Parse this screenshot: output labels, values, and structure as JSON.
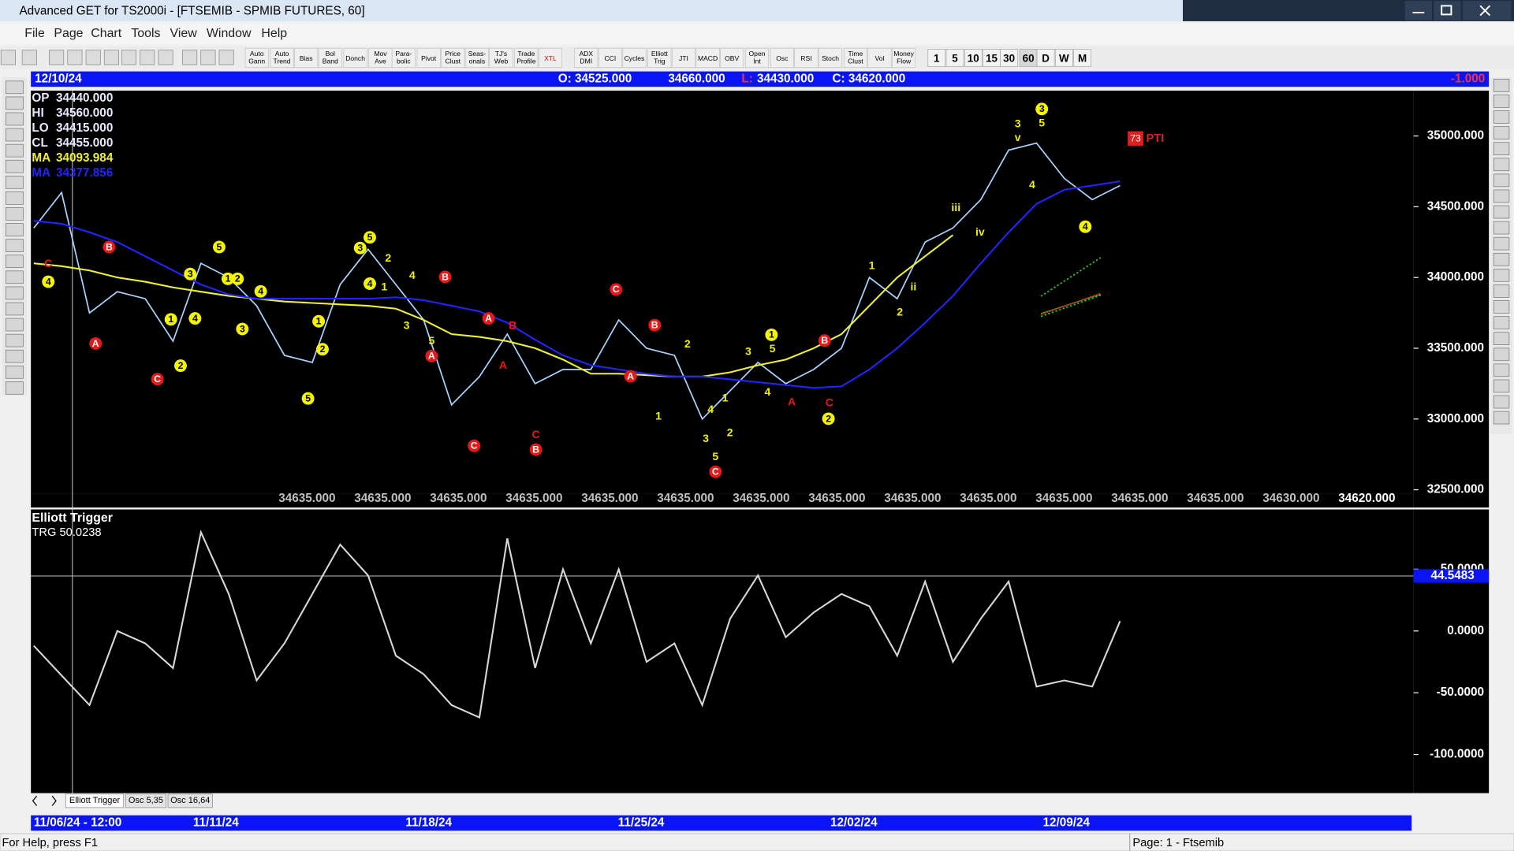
{
  "window": {
    "title": "Advanced GET for TS2000i - [FTSEMIB - SPMIB FUTURES, 60]",
    "menu": [
      "File",
      "Page",
      "Chart",
      "Tools",
      "View",
      "Window",
      "Help"
    ],
    "toolbar": [
      [
        "Auto",
        "Gann"
      ],
      [
        "Auto",
        "Trend"
      ],
      [
        "Bias"
      ],
      [
        "Bol",
        "Band"
      ],
      [
        "Donch"
      ],
      [
        "Mov",
        "Ave"
      ],
      [
        "Para-",
        "bolic"
      ],
      [
        "Pivot"
      ],
      [
        "Price",
        "Clust"
      ],
      [
        "Seas-",
        "onals"
      ],
      [
        "TJ's",
        "Web"
      ],
      [
        "Trade",
        "Profile"
      ],
      [
        "XTL"
      ],
      [
        "ADX",
        "DMI"
      ],
      [
        "CCI"
      ],
      [
        "Cycles"
      ],
      [
        "Elliott",
        "Trig"
      ],
      [
        "JTI"
      ],
      [
        "MACD"
      ],
      [
        "OBV"
      ],
      [
        "Open",
        "Int"
      ],
      [
        "Osc"
      ],
      [
        "RSI"
      ],
      [
        "Stoch"
      ],
      [
        "Time",
        "Clust"
      ],
      [
        "Vol"
      ],
      [
        "Money",
        "Flow"
      ]
    ],
    "periods": [
      "1",
      "5",
      "10",
      "15",
      "30",
      "60",
      "D",
      "W",
      "M"
    ]
  },
  "header": {
    "date": "12/10/24",
    "open": "O: 34525.000",
    "high": "34660.000",
    "low_label": "L:",
    "low": "34430.000",
    "close": "C: 34620.000",
    "change": "-1.000"
  },
  "info": [
    {
      "label": "OP",
      "value": "34440.000"
    },
    {
      "label": "HI",
      "value": "34560.000"
    },
    {
      "label": "LO",
      "value": "34415.000"
    },
    {
      "label": "CL",
      "value": "34455.000"
    },
    {
      "label": "MA",
      "value": "34093.984"
    },
    {
      "label": "MA",
      "value": "34377.856"
    }
  ],
  "chart_data": [
    {
      "type": "line",
      "series": [
        {
          "color": "#a8d4ff",
          "values": [
            34350,
            34600,
            33750,
            33900,
            33850,
            33550,
            34100,
            34000,
            33800,
            33450,
            33400,
            33950,
            34200,
            33950,
            33700,
            33100,
            33300,
            33600,
            33250,
            33350,
            33350,
            33700,
            33500,
            33450,
            33000,
            33200,
            33400,
            33250,
            33350,
            33500,
            34000,
            33850,
            34250,
            34350,
            34550,
            34900,
            34950,
            34700,
            34550,
            34650
          ]
        },
        {
          "color": "#f0f030",
          "values": [
            34100,
            34080,
            34050,
            34000,
            33970,
            33930,
            33900,
            33870,
            33850,
            33830,
            33820,
            33810,
            33800,
            33780,
            33700,
            33600,
            33580,
            33550,
            33500,
            33420,
            33320,
            33320,
            33310,
            33300,
            33300,
            33330,
            33380,
            33420,
            33500,
            33600,
            33800,
            34000,
            34150,
            34300,
            null,
            null,
            null,
            null,
            null,
            null
          ]
        },
        {
          "color": "#2323ff",
          "values": [
            34400,
            34380,
            34320,
            34250,
            34150,
            34050,
            33950,
            33880,
            33850,
            33850,
            33850,
            33850,
            33850,
            33860,
            33840,
            33800,
            33760,
            33680,
            33560,
            33450,
            33380,
            33350,
            33320,
            33300,
            33300,
            33280,
            33260,
            33240,
            33220,
            33230,
            33350,
            33500,
            33680,
            33870,
            34100,
            34320,
            34520,
            34620,
            34650,
            34680
          ]
        }
      ],
      "ylim": [
        32470,
        35320
      ],
      "yticks": [
        {
          "value": 32500,
          "label": "32500.000"
        },
        {
          "value": 33000,
          "label": "33000.000"
        },
        {
          "value": 33500,
          "label": "33500.000"
        },
        {
          "value": 34000,
          "label": "34000.000"
        },
        {
          "value": 34500,
          "label": "34500.000"
        },
        {
          "value": 35000,
          "label": "35000.000"
        }
      ],
      "value_row": [
        "34635.000",
        "34635.000",
        "34635.000",
        "34635.000",
        "34635.000",
        "34635.000",
        "34635.000",
        "34635.000",
        "34635.000",
        "34635.000",
        "34635.000",
        "34635.000",
        "34635.000",
        "34630.000",
        "34620.000"
      ],
      "pti": {
        "count": "73",
        "label": "PTI"
      },
      "annotations": [
        {
          "text": "B",
          "style": "red-circle"
        },
        {
          "text": "A",
          "style": "red-circle"
        },
        {
          "text": "C",
          "style": "red-circle"
        },
        {
          "text": "B",
          "style": "red-circle"
        },
        {
          "text": "A",
          "style": "red-circle"
        },
        {
          "text": "A",
          "style": "red-circle"
        },
        {
          "text": "C",
          "style": "red-circle"
        },
        {
          "text": "C",
          "style": "red-circle"
        },
        {
          "text": "B",
          "style": "red-circle"
        },
        {
          "text": "A",
          "style": "red-circle"
        },
        {
          "text": "B",
          "style": "red-circle"
        },
        {
          "text": "C",
          "style": "red-circle"
        },
        {
          "text": "B",
          "style": "red-circle"
        },
        {
          "text": "C",
          "style": "red"
        },
        {
          "text": "A",
          "style": "red"
        },
        {
          "text": "B",
          "style": "red"
        },
        {
          "text": "C",
          "style": "red"
        },
        {
          "text": "A",
          "style": "red"
        },
        {
          "text": "C",
          "style": "red"
        },
        {
          "text": "4",
          "style": "yellow-circle"
        },
        {
          "text": "5",
          "style": "yellow-circle"
        },
        {
          "text": "3",
          "style": "yellow-circle"
        },
        {
          "text": "1",
          "style": "yellow-circle"
        },
        {
          "text": "2",
          "style": "yellow-circle"
        },
        {
          "text": "4",
          "style": "yellow-circle"
        },
        {
          "text": "1",
          "style": "yellow-circle"
        },
        {
          "text": "2",
          "style": "yellow-circle"
        },
        {
          "text": "4",
          "style": "yellow-circle"
        },
        {
          "text": "3",
          "style": "yellow-circle"
        },
        {
          "text": "5",
          "style": "yellow-circle"
        },
        {
          "text": "3",
          "style": "yellow-circle"
        },
        {
          "text": "4",
          "style": "yellow-circle"
        },
        {
          "text": "1",
          "style": "yellow-circle"
        },
        {
          "text": "2",
          "style": "yellow-circle"
        },
        {
          "text": "5",
          "style": "yellow-circle"
        },
        {
          "text": "1",
          "style": "yellow-circle"
        },
        {
          "text": "2",
          "style": "yellow-circle"
        },
        {
          "text": "3",
          "style": "yellow-circle"
        },
        {
          "text": "4",
          "style": "yellow-circle"
        },
        {
          "text": "2",
          "style": "yellow"
        },
        {
          "text": "1",
          "style": "yellow"
        },
        {
          "text": "4",
          "style": "yellow"
        },
        {
          "text": "3",
          "style": "yellow"
        },
        {
          "text": "5",
          "style": "yellow"
        },
        {
          "text": "2",
          "style": "yellow"
        },
        {
          "text": "1",
          "style": "yellow"
        },
        {
          "text": "3",
          "style": "yellow"
        },
        {
          "text": "5",
          "style": "yellow"
        },
        {
          "text": "4",
          "style": "yellow"
        },
        {
          "text": "4",
          "style": "yellow"
        },
        {
          "text": "3",
          "style": "yellow"
        },
        {
          "text": "5",
          "style": "yellow"
        },
        {
          "text": "1",
          "style": "yellow"
        },
        {
          "text": "2",
          "style": "yellow"
        },
        {
          "text": "1",
          "style": "yellow"
        },
        {
          "text": "2",
          "style": "yellow"
        },
        {
          "text": "ii",
          "style": "yellow"
        },
        {
          "text": "iii",
          "style": "yellow"
        },
        {
          "text": "iv",
          "style": "yellow"
        },
        {
          "text": "3",
          "style": "yellow"
        },
        {
          "text": "v",
          "style": "yellow"
        },
        {
          "text": "5",
          "style": "yellow"
        },
        {
          "text": "4",
          "style": "yellow"
        }
      ]
    },
    {
      "type": "line",
      "title": "Elliott Trigger",
      "subtitle": "TRG 50.0238",
      "series": [
        {
          "color": "#d8d8d8",
          "values": [
            -12,
            -36,
            -60,
            0,
            -10,
            -30,
            80,
            30,
            -40,
            -10,
            30,
            70,
            45,
            -20,
            -35,
            -60,
            -70,
            75,
            -30,
            50,
            -10,
            50,
            -25,
            -10,
            -60,
            10,
            45,
            -5,
            15,
            30,
            20,
            -20,
            40,
            -25,
            10,
            40,
            -45,
            -40,
            -45,
            8
          ]
        }
      ],
      "ylim": [
        -131.25,
        98.4
      ],
      "yticks": [
        {
          "value": -100,
          "label": "-100.0000"
        },
        {
          "value": -50,
          "label": "-50.0000"
        },
        {
          "value": 0,
          "label": "0.0000"
        },
        {
          "value": 50,
          "label": "50.0000"
        }
      ],
      "current": 44.5483
    }
  ],
  "tabs": [
    "Elliott Trigger",
    "Osc 5,35",
    "Osc 16,64"
  ],
  "date_axis": [
    "11/06/24 - 12:00",
    "11/11/24",
    "11/18/24",
    "11/25/24",
    "12/02/24",
    "12/09/24"
  ],
  "status": {
    "left": "For Help, press F1",
    "right": "Page: 1 - Ftsemib"
  }
}
